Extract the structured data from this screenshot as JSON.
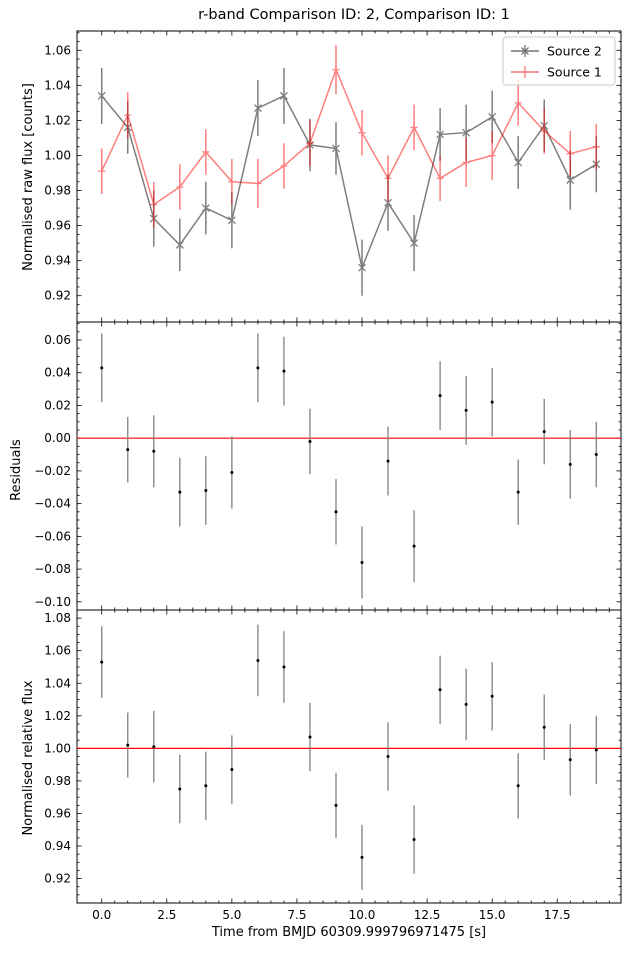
{
  "title": "r-band Comparison ID: 2, Comparison ID: 1",
  "shared_xlabel": "Time from BMJD 60309.999796971475 [s]",
  "colors": {
    "source2": "#000000",
    "source1": "#ff0000",
    "zero_line": "#ff0000",
    "errorbar": "#808080",
    "points": "#000000"
  },
  "legend": {
    "placement": "top-right",
    "entries": [
      "Source 2",
      "Source 1"
    ]
  },
  "chart_data": [
    {
      "type": "line",
      "ylabel": "Normalised raw flux [counts]",
      "xlim": [
        -0.95,
        19.95
      ],
      "ylim": [
        0.905,
        1.071
      ],
      "xticks": [
        "0.0",
        "2.5",
        "5.0",
        "7.5",
        "10.0",
        "12.5",
        "15.0",
        "17.5"
      ],
      "yticks": [
        "0.92",
        "0.94",
        "0.96",
        "0.98",
        "1.00",
        "1.02",
        "1.04",
        "1.06"
      ],
      "x": [
        0,
        1,
        2,
        3,
        4,
        5,
        6,
        7,
        8,
        9,
        10,
        11,
        12,
        13,
        14,
        15,
        16,
        17,
        18,
        19
      ],
      "series": [
        {
          "name": "Source 2",
          "marker": "x",
          "values": [
            1.034,
            1.016,
            0.964,
            0.949,
            0.97,
            0.963,
            1.027,
            1.034,
            1.006,
            1.004,
            0.936,
            0.973,
            0.95,
            1.012,
            1.013,
            1.022,
            0.996,
            1.017,
            0.986,
            0.995
          ],
          "errors": [
            0.016,
            0.015,
            0.016,
            0.015,
            0.015,
            0.016,
            0.016,
            0.016,
            0.015,
            0.015,
            0.016,
            0.016,
            0.016,
            0.015,
            0.016,
            0.015,
            0.015,
            0.015,
            0.017,
            0.016
          ]
        },
        {
          "name": "Source 1",
          "marker": "+",
          "values": [
            0.991,
            1.023,
            0.972,
            0.982,
            1.002,
            0.985,
            0.984,
            0.994,
            1.007,
            1.049,
            1.013,
            0.987,
            1.016,
            0.987,
            0.996,
            1.0,
            1.03,
            1.014,
            1.001,
            1.005
          ],
          "errors": [
            0.013,
            0.013,
            0.013,
            0.013,
            0.013,
            0.013,
            0.014,
            0.013,
            0.013,
            0.014,
            0.013,
            0.013,
            0.013,
            0.013,
            0.014,
            0.014,
            0.013,
            0.013,
            0.013,
            0.013
          ]
        }
      ]
    },
    {
      "type": "scatter",
      "ylabel": "Residuals",
      "xlim": [
        -0.95,
        19.95
      ],
      "ylim": [
        -0.105,
        0.071
      ],
      "xticks": [
        "0.0",
        "2.5",
        "5.0",
        "7.5",
        "10.0",
        "12.5",
        "15.0",
        "17.5"
      ],
      "yticks": [
        "−0.10",
        "−0.08",
        "−0.06",
        "−0.04",
        "−0.02",
        "0.00",
        "0.02",
        "0.04",
        "0.06"
      ],
      "reference_line": 0.0,
      "x": [
        0,
        1,
        2,
        3,
        4,
        5,
        6,
        7,
        8,
        9,
        10,
        11,
        12,
        13,
        14,
        15,
        16,
        17,
        18,
        19
      ],
      "values": [
        0.043,
        -0.007,
        -0.008,
        -0.033,
        -0.032,
        -0.021,
        0.043,
        0.041,
        -0.002,
        -0.045,
        -0.076,
        -0.014,
        -0.066,
        0.026,
        0.017,
        0.022,
        -0.033,
        0.004,
        -0.016,
        -0.01
      ],
      "errors": [
        0.021,
        0.02,
        0.022,
        0.021,
        0.021,
        0.022,
        0.021,
        0.021,
        0.02,
        0.02,
        0.022,
        0.021,
        0.022,
        0.021,
        0.021,
        0.021,
        0.02,
        0.02,
        0.021,
        0.02
      ]
    },
    {
      "type": "scatter",
      "ylabel": "Normalised relative flux",
      "xlabel": "Time from BMJD 60309.999796971475 [s]",
      "xlim": [
        -0.95,
        19.95
      ],
      "ylim": [
        0.905,
        1.085
      ],
      "xticks": [
        "0.0",
        "2.5",
        "5.0",
        "7.5",
        "10.0",
        "12.5",
        "15.0",
        "17.5"
      ],
      "yticks": [
        "0.92",
        "0.94",
        "0.96",
        "0.98",
        "1.00",
        "1.02",
        "1.04",
        "1.06",
        "1.08"
      ],
      "reference_line": 1.0,
      "x": [
        0,
        1,
        2,
        3,
        4,
        5,
        6,
        7,
        8,
        9,
        10,
        11,
        12,
        13,
        14,
        15,
        16,
        17,
        18,
        19
      ],
      "values": [
        1.053,
        1.002,
        1.001,
        0.975,
        0.977,
        0.987,
        1.054,
        1.05,
        1.007,
        0.965,
        0.933,
        0.995,
        0.944,
        1.036,
        1.027,
        1.032,
        0.977,
        1.013,
        0.993,
        0.999
      ],
      "errors": [
        0.022,
        0.02,
        0.022,
        0.021,
        0.021,
        0.021,
        0.022,
        0.022,
        0.021,
        0.02,
        0.02,
        0.021,
        0.021,
        0.021,
        0.022,
        0.021,
        0.02,
        0.02,
        0.022,
        0.021
      ]
    }
  ]
}
